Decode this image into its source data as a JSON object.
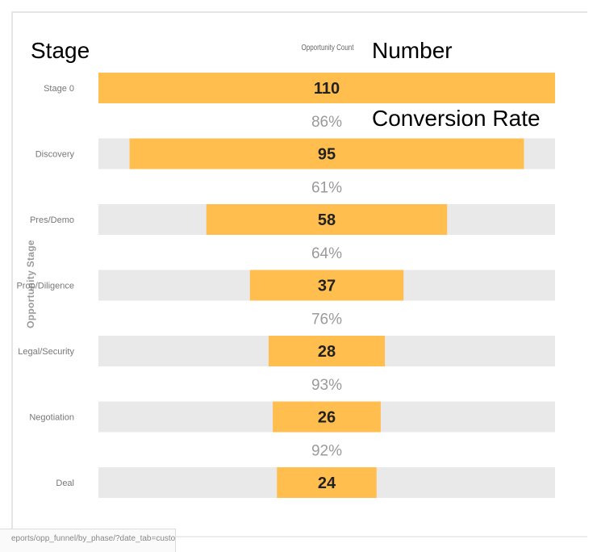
{
  "annotations": {
    "stage": "Stage",
    "number": "Number",
    "conversion_rate": "Conversion Rate"
  },
  "axis": {
    "count_header": "Opportunity Count",
    "y_title": "Opportunity Stage"
  },
  "url_fragment": "eports/opp_funnel/by_phase/?date_tab=custom&en",
  "colors": {
    "bar": "#FFBE4D",
    "track": "#E9E9E9"
  },
  "chart_data": {
    "type": "bar",
    "orientation": "horizontal-funnel",
    "categories": [
      "Stage 0",
      "Discovery",
      "Pres/Demo",
      "Prop/Diligence",
      "Legal/Security",
      "Negotiation",
      "Deal"
    ],
    "values": [
      110,
      95,
      58,
      37,
      28,
      26,
      24
    ],
    "conversion_rates": [
      "86%",
      "61%",
      "64%",
      "76%",
      "93%",
      "92%"
    ],
    "xlim": [
      0,
      110
    ],
    "xlabel": "Opportunity Count",
    "ylabel": "Opportunity Stage",
    "grid": false,
    "legend": "none"
  }
}
